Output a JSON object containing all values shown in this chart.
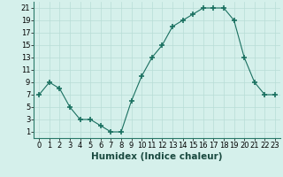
{
  "x": [
    0,
    1,
    2,
    3,
    4,
    5,
    6,
    7,
    8,
    9,
    10,
    11,
    12,
    13,
    14,
    15,
    16,
    17,
    18,
    19,
    20,
    21,
    22,
    23
  ],
  "y": [
    7,
    9,
    8,
    5,
    3,
    3,
    2,
    1,
    1,
    6,
    10,
    13,
    15,
    18,
    19,
    20,
    21,
    21,
    21,
    19,
    13,
    9,
    7,
    7
  ],
  "xlabel": "Humidex (Indice chaleur)",
  "ylabel": "",
  "line_color": "#1a7060",
  "marker": "+",
  "bg_color": "#d5f0eb",
  "grid_color": "#b8ddd6",
  "xlim": [
    -0.5,
    23.5
  ],
  "ylim": [
    0,
    22
  ],
  "yticks": [
    1,
    3,
    5,
    7,
    9,
    11,
    13,
    15,
    17,
    19,
    21
  ],
  "xticks": [
    0,
    1,
    2,
    3,
    4,
    5,
    6,
    7,
    8,
    9,
    10,
    11,
    12,
    13,
    14,
    15,
    16,
    17,
    18,
    19,
    20,
    21,
    22,
    23
  ],
  "tick_fontsize": 6.0,
  "label_fontsize": 7.5
}
